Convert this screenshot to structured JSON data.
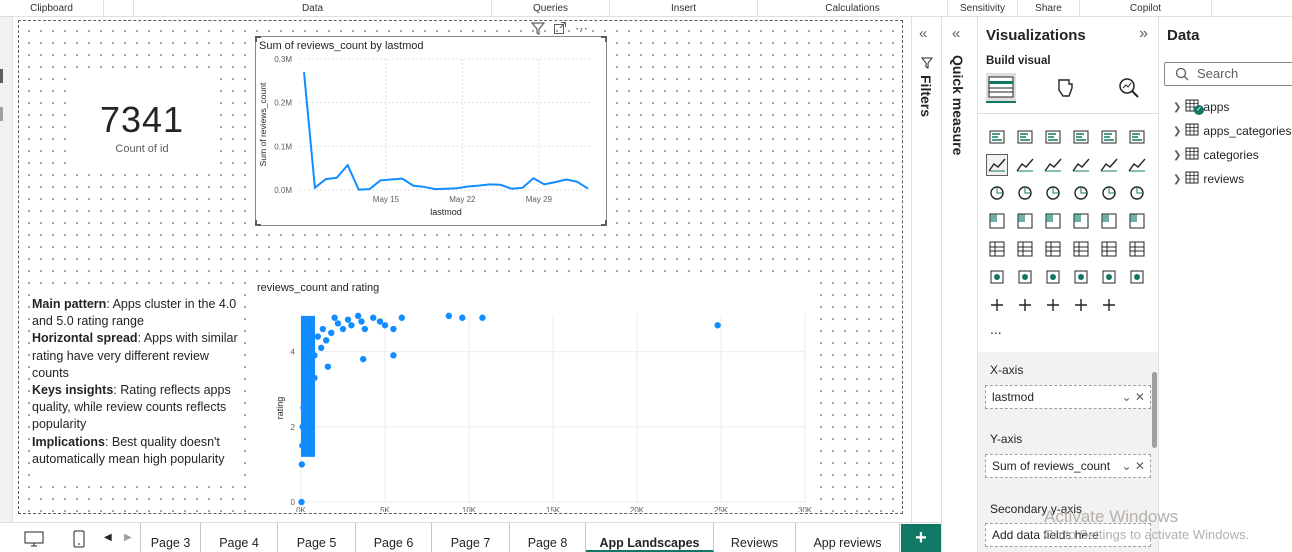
{
  "ribbon": {
    "groups": [
      "Clipboard",
      "Data",
      "Queries",
      "Insert",
      "Calculations",
      "Sensitivity",
      "Share",
      "Copilot"
    ]
  },
  "card": {
    "value": "7341",
    "label": "Count of id"
  },
  "line_visual": {
    "title": "Sum of reviews_count by lastmod",
    "chart_data": {
      "type": "line",
      "title": "Sum of reviews_count by lastmod",
      "xlabel": "lastmod",
      "ylabel": "Sum of reviews_count",
      "x_ticks": [
        "May 15",
        "May 29"
      ],
      "x_ticks_extra": [
        "May 22"
      ],
      "y_ticks": [
        "0.0M",
        "0.1M",
        "0.2M",
        "0.3M"
      ],
      "ylim": [
        0,
        0.3
      ],
      "values": [
        0.27,
        0.005,
        0.025,
        0.028,
        0.057,
        0.001,
        0.002,
        0.022,
        0.024,
        0.026,
        0.01,
        0.007,
        0.002,
        0.003,
        0.004,
        0.008,
        0.01,
        0.013,
        0.012,
        0.003,
        0.005,
        0.027,
        0.013,
        0.018,
        0.024,
        0.019,
        0.003
      ]
    }
  },
  "scatter_visual": {
    "title": "reviews_count and rating",
    "chart_data": {
      "type": "scatter",
      "title": "reviews_count and rating",
      "xlabel": "reviews_count",
      "ylabel": "rating",
      "x_ticks": [
        "0K",
        "5K",
        "10K",
        "15K",
        "20K",
        "25K",
        "30K"
      ],
      "y_ticks": [
        "0",
        "2",
        "4"
      ],
      "xlim": [
        0,
        30000
      ],
      "ylim": [
        0,
        5
      ],
      "points": [
        [
          24800,
          4.7
        ],
        [
          10800,
          4.9
        ],
        [
          9600,
          4.9
        ],
        [
          8800,
          4.95
        ],
        [
          6000,
          4.9
        ],
        [
          5500,
          4.6
        ],
        [
          5000,
          4.7
        ],
        [
          4700,
          4.8
        ],
        [
          4300,
          4.9
        ],
        [
          3800,
          4.6
        ],
        [
          3600,
          4.8
        ],
        [
          3400,
          4.95
        ],
        [
          3000,
          4.7
        ],
        [
          2800,
          4.85
        ],
        [
          2500,
          4.6
        ],
        [
          2200,
          4.75
        ],
        [
          2000,
          4.9
        ],
        [
          1800,
          4.5
        ],
        [
          1500,
          4.3
        ],
        [
          1300,
          4.6
        ],
        [
          1200,
          4.1
        ],
        [
          1000,
          4.4
        ],
        [
          800,
          3.9
        ],
        [
          600,
          4.2
        ],
        [
          500,
          3.5
        ],
        [
          400,
          3.8
        ],
        [
          300,
          3.2
        ],
        [
          200,
          4.6
        ],
        [
          150,
          2.5
        ],
        [
          100,
          2.0
        ],
        [
          80,
          1.5
        ],
        [
          50,
          1.0
        ],
        [
          30,
          0.0
        ],
        [
          5500,
          3.9
        ],
        [
          3700,
          3.8
        ],
        [
          1600,
          3.6
        ],
        [
          800,
          3.3
        ],
        [
          300,
          2.8
        ]
      ]
    }
  },
  "textbox": {
    "p1_bold": "Main pattern",
    "p1": ": Apps cluster in the 4.0 and 5.0  rating range",
    "p2_bold": "Horizontal spread",
    "p2": ": Apps with similar rating have very different review counts",
    "p3_bold": "Keys insights",
    "p3": ": Rating reflects apps quality, while review counts reflects popularity",
    "p4_bold": "Implications",
    "p4": ": Best quality doesn't automatically mean high popularity"
  },
  "tabs": [
    "Page 3",
    "Page 4",
    "Page 5",
    "Page 6",
    "Page 7",
    "Page 8",
    "App Landscapes",
    "Reviews",
    "App reviews"
  ],
  "active_tab": "App Landscapes",
  "filters_label": "Filters",
  "quick_measure_label": "Quick measure",
  "visualizations": {
    "title": "Visualizations",
    "build_visual": "Build visual",
    "more": "...",
    "xaxis_label": "X-axis",
    "xaxis_field": "lastmod",
    "yaxis_label": "Y-axis",
    "yaxis_field": "Sum of reviews_count",
    "secondary_label": "Secondary y-axis",
    "add_fields": "Add data fields here"
  },
  "data_pane": {
    "title": "Data",
    "search_placeholder": "Search",
    "tables": [
      "apps",
      "apps_categories",
      "categories",
      "reviews"
    ]
  },
  "watermark": {
    "line1": "Activate Windows",
    "line2": "Go to Settings to activate Windows."
  },
  "colors": {
    "accent": "#117865",
    "series": "#118DFF"
  }
}
